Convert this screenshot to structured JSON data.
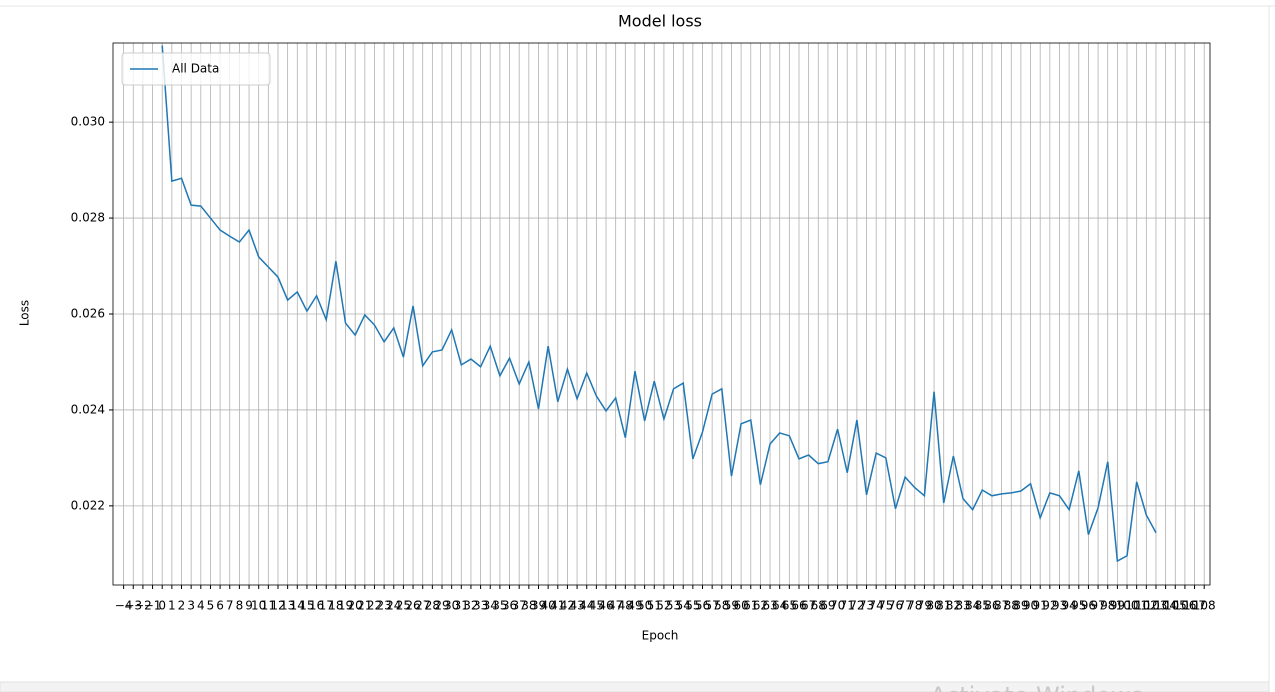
{
  "chart_data": {
    "type": "line",
    "title": "Model loss",
    "xlabel": "Epoch",
    "ylabel": "Loss",
    "x": [
      0,
      1,
      2,
      3,
      4,
      5,
      6,
      7,
      8,
      9,
      10,
      11,
      12,
      13,
      14,
      15,
      16,
      17,
      18,
      19,
      20,
      21,
      22,
      23,
      24,
      25,
      26,
      27,
      28,
      29,
      30,
      31,
      32,
      33,
      34,
      35,
      36,
      37,
      38,
      39,
      40,
      41,
      42,
      43,
      44,
      45,
      46,
      47,
      48,
      49,
      50,
      51,
      52,
      53,
      54,
      55,
      56,
      57,
      58,
      59,
      60,
      61,
      62,
      63,
      64,
      65,
      66,
      67,
      68,
      69,
      70,
      71,
      72,
      73,
      74,
      75,
      76,
      77,
      78,
      79,
      80,
      81,
      82,
      83,
      84,
      85,
      86,
      87,
      88,
      89,
      90,
      91,
      92,
      93,
      94,
      95,
      96,
      97,
      98,
      99,
      100,
      101,
      102,
      103
    ],
    "series": [
      {
        "name": "All Data",
        "color": "#1f77b4",
        "values": [
          0.0316,
          0.02877,
          0.02883,
          0.02827,
          0.02825,
          0.028,
          0.02775,
          0.02762,
          0.0275,
          0.02775,
          0.02719,
          0.02698,
          0.02677,
          0.02629,
          0.02646,
          0.02606,
          0.02638,
          0.02588,
          0.0271,
          0.02581,
          0.02556,
          0.02598,
          0.02577,
          0.02542,
          0.02571,
          0.0251,
          0.02617,
          0.02492,
          0.02521,
          0.02525,
          0.02567,
          0.02494,
          0.02506,
          0.0249,
          0.02533,
          0.02471,
          0.02508,
          0.02454,
          0.025,
          0.02402,
          0.02533,
          0.02417,
          0.02485,
          0.02423,
          0.02477,
          0.02429,
          0.02398,
          0.02425,
          0.02342,
          0.02481,
          0.02377,
          0.0246,
          0.02381,
          0.02444,
          0.02456,
          0.02298,
          0.02354,
          0.02433,
          0.02444,
          0.02262,
          0.02371,
          0.02379,
          0.02244,
          0.02329,
          0.02352,
          0.02346,
          0.02298,
          0.02306,
          0.02288,
          0.02292,
          0.0236,
          0.02269,
          0.02379,
          0.02223,
          0.0231,
          0.023,
          0.02194,
          0.0226,
          0.02238,
          0.02221,
          0.02438,
          0.02206,
          0.02304,
          0.02215,
          0.02192,
          0.02233,
          0.02221,
          0.02225,
          0.02227,
          0.02231,
          0.02246,
          0.02175,
          0.02227,
          0.02221,
          0.02192,
          0.02273,
          0.0214,
          0.02196,
          0.02292,
          0.02085,
          0.02096,
          0.0225,
          0.02181,
          0.02144
        ]
      }
    ],
    "xlim": [
      -5.1,
      108.6
    ],
    "ylim": [
      0.02035,
      0.03165
    ],
    "xticks": [
      {
        "value": -4,
        "label": "−4"
      },
      {
        "value": -3,
        "label": "−3"
      },
      {
        "value": -2,
        "label": "−2"
      },
      {
        "value": -1,
        "label": "−1"
      },
      0,
      1,
      2,
      3,
      4,
      5,
      6,
      7,
      8,
      9,
      10,
      11,
      12,
      13,
      14,
      15,
      16,
      17,
      18,
      19,
      20,
      21,
      22,
      23,
      24,
      25,
      26,
      27,
      28,
      29,
      30,
      31,
      32,
      33,
      34,
      35,
      36,
      37,
      38,
      39,
      40,
      41,
      42,
      43,
      44,
      45,
      46,
      47,
      48,
      49,
      50,
      51,
      52,
      53,
      54,
      55,
      56,
      57,
      58,
      59,
      60,
      61,
      62,
      63,
      64,
      65,
      66,
      67,
      68,
      69,
      70,
      71,
      72,
      73,
      74,
      75,
      76,
      77,
      78,
      79,
      80,
      81,
      82,
      83,
      84,
      85,
      86,
      87,
      88,
      89,
      90,
      91,
      92,
      93,
      94,
      95,
      96,
      97,
      98,
      99,
      100,
      101,
      102,
      103,
      104,
      105,
      106,
      107,
      108
    ],
    "yticks": [
      0.022,
      0.024,
      0.026,
      0.028,
      {
        "value": 0.03,
        "label": "0.030"
      }
    ],
    "grid": true,
    "legend": "upper left"
  },
  "overlay_text": "Activate Windows"
}
